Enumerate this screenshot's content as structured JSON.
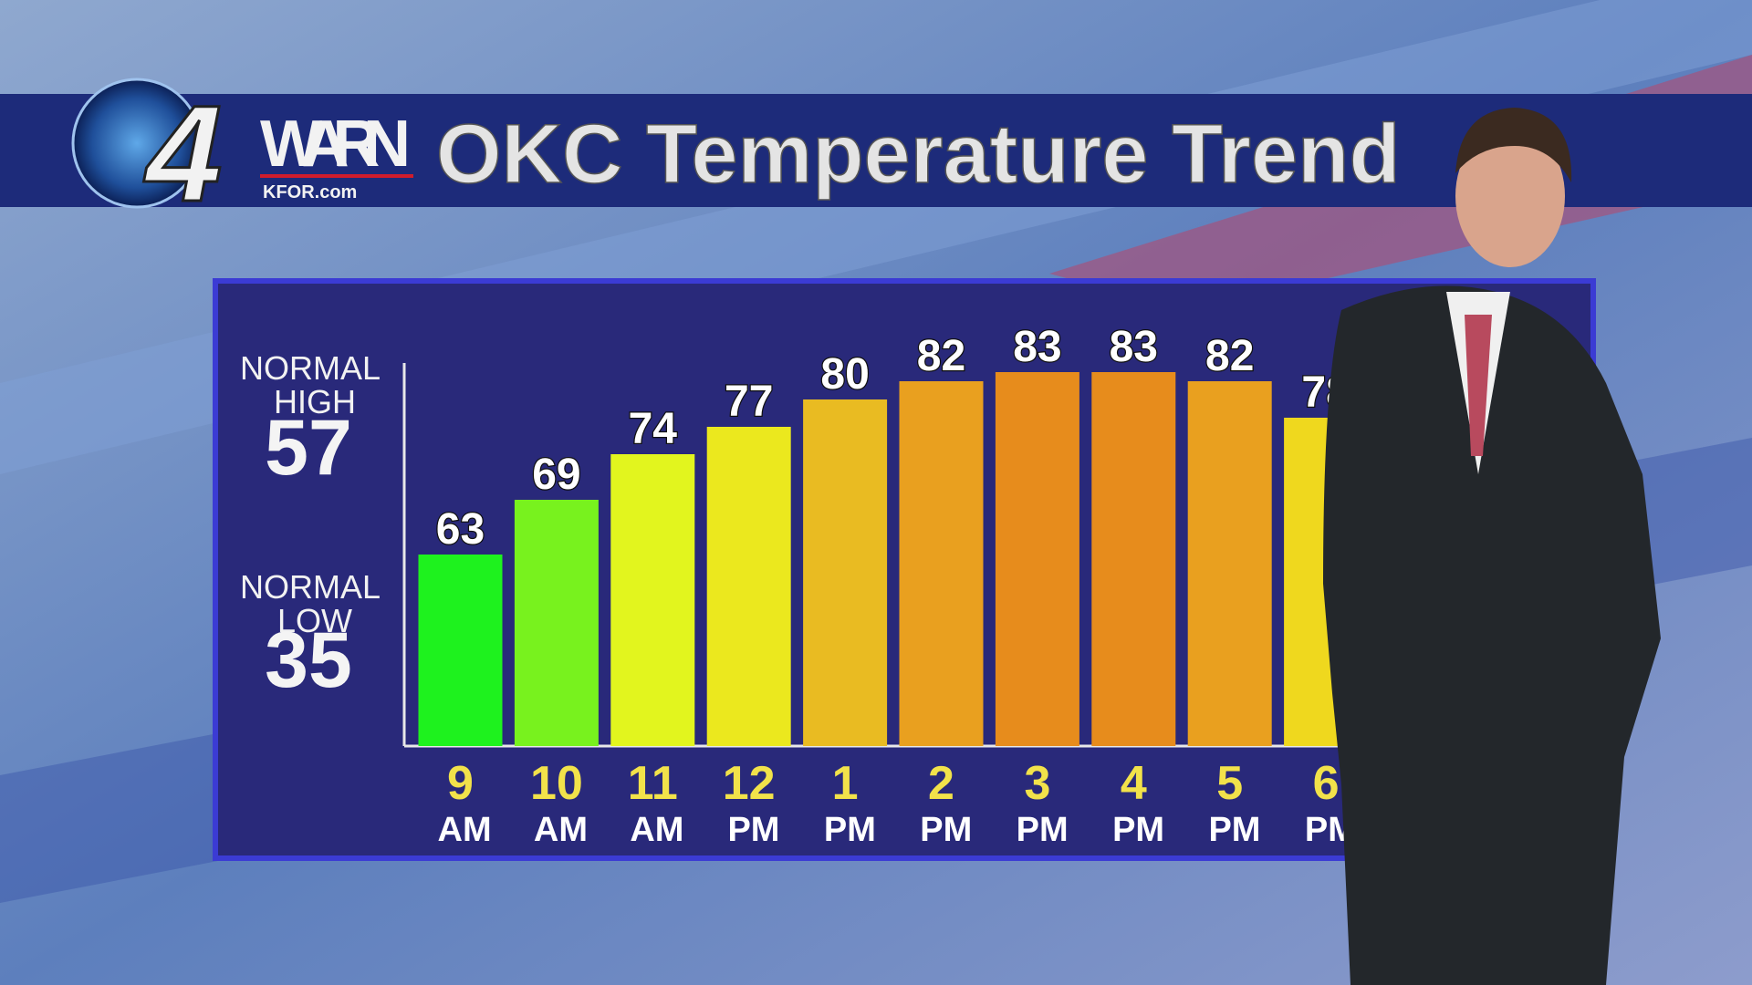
{
  "branding": {
    "number": "4",
    "name": "WARN",
    "site": "KFOR.com"
  },
  "chart_data": {
    "type": "bar",
    "title": "OKC Temperature Trend",
    "categories": [
      "9 AM",
      "10 AM",
      "11 AM",
      "12 PM",
      "1 PM",
      "2 PM",
      "3 PM",
      "4 PM",
      "5 PM",
      "6 PM"
    ],
    "values": [
      63,
      69,
      74,
      77,
      80,
      82,
      83,
      83,
      82,
      78
    ],
    "colors": [
      "#1ef21e",
      "#78f21e",
      "#e2f51e",
      "#ebe81e",
      "#e9bb22",
      "#e9a01f",
      "#e78c1c",
      "#e78c1c",
      "#e9a01f",
      "#efd81e"
    ],
    "ylim": [
      42,
      84
    ],
    "normals": [
      {
        "label": "NORMAL HIGH",
        "value": 57
      },
      {
        "label": "NORMAL LOW",
        "value": 35
      }
    ]
  }
}
